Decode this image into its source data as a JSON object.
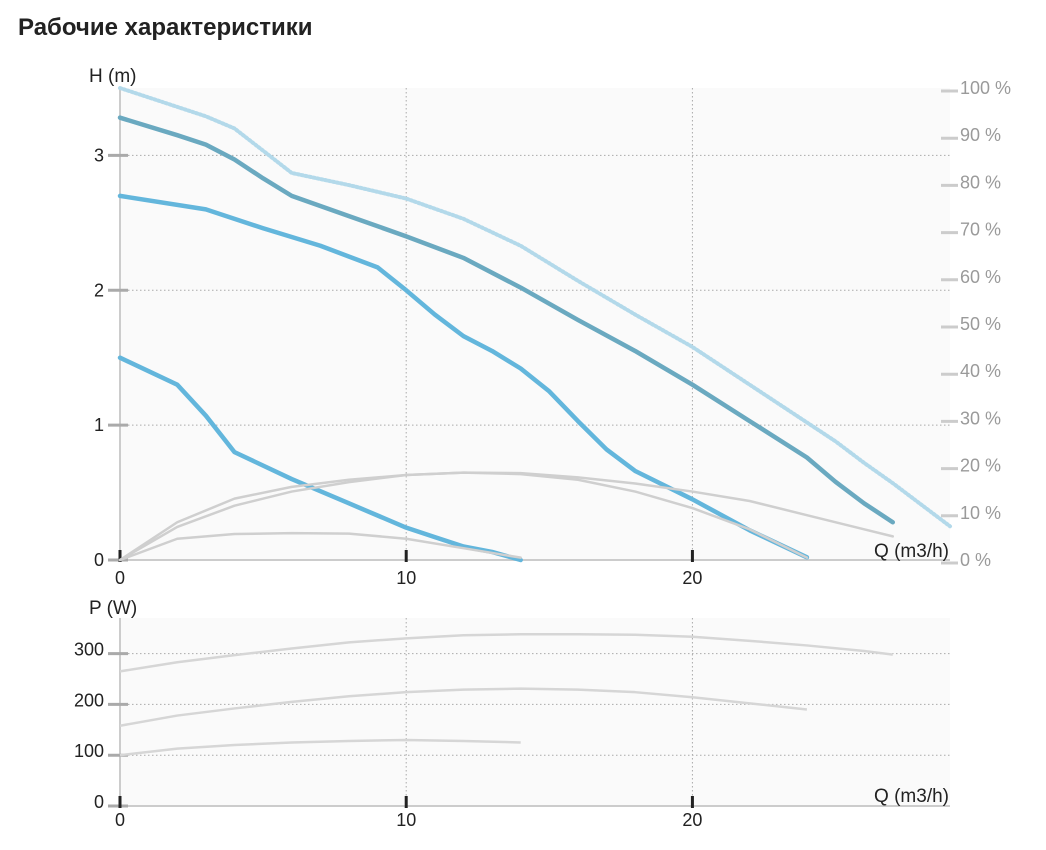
{
  "title": "Рабочие характеристики",
  "chart_data": [
    {
      "type": "line",
      "ylabel": "H (m)",
      "xlabel": "Q (m3/h)",
      "xlim": [
        0,
        29
      ],
      "ylim": [
        0,
        3.5
      ],
      "y2lim": [
        0,
        100
      ],
      "x_ticks": [
        "0",
        "10",
        "20"
      ],
      "y_ticks": [
        "0",
        "1",
        "2",
        "3"
      ],
      "y2_ticks": [
        "0 %",
        "10 %",
        "20 %",
        "30 %",
        "40 %",
        "50 %",
        "60 %",
        "70 %",
        "80 %",
        "90 %",
        "100 %"
      ],
      "grid": true,
      "series": [
        {
          "role": "head",
          "color": "#6aa9c0",
          "style": "solid",
          "x": [
            0,
            2,
            3,
            4,
            5,
            6,
            8,
            10,
            12,
            14,
            16,
            18,
            20,
            22,
            24,
            25,
            26,
            27
          ],
          "y": [
            3.28,
            3.15,
            3.08,
            2.97,
            2.83,
            2.7,
            2.55,
            2.4,
            2.24,
            2.02,
            1.78,
            1.55,
            1.3,
            1.03,
            0.76,
            0.58,
            0.42,
            0.28
          ]
        },
        {
          "role": "head",
          "color": "#63b6dc",
          "style": "solid",
          "x": [
            0,
            3,
            5,
            7,
            9,
            10,
            11,
            12,
            13,
            14,
            15,
            16,
            17,
            18,
            20,
            22,
            24
          ],
          "y": [
            2.7,
            2.6,
            2.46,
            2.33,
            2.17,
            2.0,
            1.82,
            1.66,
            1.55,
            1.42,
            1.25,
            1.03,
            0.82,
            0.66,
            0.45,
            0.22,
            0.02
          ]
        },
        {
          "role": "head",
          "color": "#63b6dc",
          "style": "solid",
          "x": [
            0,
            1,
            2,
            3,
            4,
            6,
            8,
            10,
            11,
            12,
            13,
            14
          ],
          "y": [
            1.5,
            1.4,
            1.3,
            1.07,
            0.8,
            0.6,
            0.42,
            0.24,
            0.17,
            0.1,
            0.06,
            0.0
          ]
        },
        {
          "role": "head",
          "color": "#b3d9ea",
          "style": "dotted",
          "x": [
            0,
            1,
            2,
            3,
            4,
            6,
            8,
            10,
            12,
            14,
            16,
            18,
            20,
            22,
            24,
            25,
            26,
            27,
            28,
            29
          ],
          "y": [
            3.5,
            3.43,
            3.36,
            3.29,
            3.2,
            2.87,
            2.78,
            2.68,
            2.53,
            2.33,
            2.07,
            1.82,
            1.58,
            1.3,
            1.02,
            0.88,
            0.72,
            0.57,
            0.41,
            0.25
          ]
        },
        {
          "role": "efficiency",
          "color": "#cfcfcf",
          "style": "solid",
          "x": [
            0,
            2,
            4,
            6,
            8,
            10,
            12,
            14,
            16,
            18,
            20,
            22,
            24,
            26,
            27
          ],
          "y": [
            0,
            8,
            13,
            15.5,
            17,
            18,
            18.5,
            18.4,
            17.5,
            16.2,
            14.5,
            12.5,
            9.5,
            6.5,
            5
          ]
        },
        {
          "role": "efficiency",
          "color": "#cfcfcf",
          "style": "solid",
          "x": [
            0,
            2,
            4,
            6,
            8,
            10,
            12,
            14,
            16,
            18,
            20,
            22,
            24
          ],
          "y": [
            0,
            7,
            11.5,
            14.5,
            16.5,
            18,
            18.5,
            18.2,
            17,
            14.5,
            11,
            6.5,
            0.5
          ]
        },
        {
          "role": "efficiency",
          "color": "#cfcfcf",
          "style": "solid",
          "x": [
            0,
            2,
            4,
            6,
            8,
            10,
            12,
            14
          ],
          "y": [
            0,
            4.5,
            5.5,
            5.7,
            5.6,
            4.5,
            2.5,
            0.5
          ]
        }
      ]
    },
    {
      "type": "line",
      "ylabel": "P (W)",
      "xlabel": "Q (m3/h)",
      "xlim": [
        0,
        29
      ],
      "ylim": [
        0,
        370
      ],
      "x_ticks": [
        "0",
        "10",
        "20"
      ],
      "y_ticks": [
        "0",
        "100",
        "200",
        "300"
      ],
      "grid": true,
      "series": [
        {
          "color": "#d6d6d6",
          "x": [
            0,
            2,
            4,
            6,
            8,
            10,
            12,
            14,
            16,
            18,
            20,
            22,
            24,
            26,
            27
          ],
          "y": [
            265,
            283,
            297,
            310,
            322,
            330,
            336,
            338,
            338,
            337,
            333,
            325,
            316,
            305,
            298
          ]
        },
        {
          "color": "#d6d6d6",
          "x": [
            0,
            2,
            4,
            6,
            8,
            10,
            12,
            14,
            16,
            18,
            20,
            22,
            24
          ],
          "y": [
            158,
            178,
            192,
            205,
            216,
            224,
            229,
            231,
            229,
            224,
            214,
            202,
            190
          ]
        },
        {
          "color": "#d6d6d6",
          "x": [
            0,
            2,
            4,
            6,
            8,
            10,
            12,
            14
          ],
          "y": [
            100,
            113,
            120,
            125,
            128,
            130,
            128,
            125
          ]
        }
      ]
    }
  ]
}
